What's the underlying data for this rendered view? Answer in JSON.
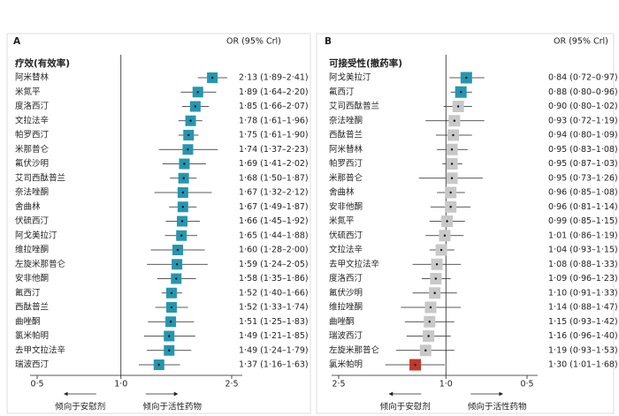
{
  "chart_data": [
    {
      "type": "forest",
      "panel": "A",
      "header": "OR (95% Crl)",
      "title": "疗效(有效率)",
      "left_note": "倾向于安慰剂",
      "right_note": "倾向于活性药物",
      "log": true,
      "xlim": [
        0.5,
        2.5
      ],
      "xticks": [
        {
          "value": 0.5,
          "label": "0·5"
        },
        {
          "value": 1.0,
          "label": "1·0"
        },
        {
          "value": 2.5,
          "label": "2·5"
        }
      ],
      "color": "#2596b0",
      "categories": [
        "阿米替林",
        "米氮平",
        "度洛西汀",
        "文拉法辛",
        "帕罗西汀",
        "米那普仑",
        "氟伏沙明",
        "艾司西酞普兰",
        "奈法唑酮",
        "舍曲林",
        "伏硫西汀",
        "阿戈美拉汀",
        "维拉唑酮",
        "左旋米那普仑",
        "安非他酮",
        "氟西汀",
        "西酞普兰",
        "曲唑酮",
        "氯米帕明",
        "去甲文拉法辛",
        "瑞波西汀"
      ],
      "values": [
        2.13,
        1.89,
        1.85,
        1.78,
        1.75,
        1.74,
        1.69,
        1.68,
        1.67,
        1.67,
        1.66,
        1.65,
        1.6,
        1.59,
        1.58,
        1.52,
        1.52,
        1.51,
        1.49,
        1.49,
        1.37
      ],
      "lower": [
        1.89,
        1.64,
        1.66,
        1.61,
        1.61,
        1.37,
        1.41,
        1.5,
        1.32,
        1.49,
        1.45,
        1.44,
        1.28,
        1.24,
        1.35,
        1.4,
        1.33,
        1.25,
        1.21,
        1.24,
        1.16
      ],
      "upper": [
        2.41,
        2.2,
        2.07,
        1.96,
        1.9,
        2.23,
        2.02,
        1.87,
        2.12,
        1.87,
        1.92,
        1.88,
        2.0,
        2.05,
        1.86,
        1.66,
        1.74,
        1.83,
        1.85,
        1.79,
        1.63
      ],
      "value_labels": [
        "2·13 (1·89–2·41)",
        "1·89 (1·64–2·20)",
        "1·85 (1·66–2·07)",
        "1·78 (1·61–1·96)",
        "1·75 (1·61–1·90)",
        "1·74 (1·37–2·23)",
        "1·69 (1·41–2·02)",
        "1·68 (1·50–1·87)",
        "1·67 (1·32–2·12)",
        "1·67 (1·49–1·87)",
        "1·66 (1·45–1·92)",
        "1·65 (1·44–1·88)",
        "1·60 (1·28–2·00)",
        "1·59 (1·24–2·05)",
        "1·58 (1·35–1·86)",
        "1·52 (1·40–1·66)",
        "1·52 (1·33–1·74)",
        "1·51 (1·25–1·83)",
        "1·49 (1·21–1·85)",
        "1·49 (1·24–1·79)",
        "1·37 (1·16–1·63)"
      ]
    },
    {
      "type": "forest",
      "panel": "B",
      "header": "OR (95% Crl)",
      "title": "可接受性(撤药率)",
      "left_note": "倾向于安慰剂",
      "right_note": "倾向于活性药物",
      "log": true,
      "xlim": [
        2.5,
        0.5
      ],
      "xticks": [
        {
          "value": 2.5,
          "label": "2·5"
        },
        {
          "value": 1.0,
          "label": "1·0"
        },
        {
          "value": 0.5,
          "label": "0·5"
        }
      ],
      "colors": [
        "#2596b0",
        "#2596b0",
        "#c8c8c8",
        "#c8c8c8",
        "#c8c8c8",
        "#c8c8c8",
        "#c8c8c8",
        "#c8c8c8",
        "#c8c8c8",
        "#c8c8c8",
        "#c8c8c8",
        "#c8c8c8",
        "#c8c8c8",
        "#c8c8c8",
        "#c8c8c8",
        "#c8c8c8",
        "#c8c8c8",
        "#c8c8c8",
        "#c8c8c8",
        "#c8c8c8",
        "#c0392b"
      ],
      "categories": [
        "阿戈美拉汀",
        "氟西汀",
        "艾司西酞普兰",
        "奈法唑酮",
        "西酞普兰",
        "阿米替林",
        "帕罗西汀",
        "米那普仑",
        "舍曲林",
        "安非他酮",
        "米氮平",
        "伏硫西汀",
        "文拉法辛",
        "去甲文拉法辛",
        "度洛西汀",
        "氟伏沙明",
        "维拉唑酮",
        "曲唑酮",
        "瑞波西汀",
        "左旋米那普仑",
        "氯米帕明"
      ],
      "values": [
        0.84,
        0.88,
        0.9,
        0.93,
        0.94,
        0.95,
        0.95,
        0.95,
        0.96,
        0.96,
        0.99,
        1.01,
        1.04,
        1.08,
        1.09,
        1.1,
        1.14,
        1.15,
        1.16,
        1.19,
        1.3
      ],
      "lower": [
        0.72,
        0.8,
        0.8,
        0.72,
        0.8,
        0.83,
        0.87,
        0.73,
        0.85,
        0.81,
        0.85,
        0.86,
        0.93,
        0.88,
        0.96,
        0.91,
        0.88,
        0.93,
        0.96,
        0.93,
        1.01
      ],
      "upper": [
        0.97,
        0.96,
        1.02,
        1.19,
        1.09,
        1.08,
        1.03,
        1.26,
        1.08,
        1.14,
        1.15,
        1.19,
        1.15,
        1.33,
        1.23,
        1.33,
        1.47,
        1.42,
        1.4,
        1.53,
        1.68
      ],
      "value_labels": [
        "0·84 (0·72–0·97)",
        "0·88 (0·80–0·96)",
        "0·90 (0·80–1·02)",
        "0·93 (0·72–1·19)",
        "0·94 (0·80–1·09)",
        "0·95 (0·83–1·08)",
        "0·95 (0·87–1·03)",
        "0·95 (0·73–1·26)",
        "0·96 (0·85–1·08)",
        "0·96 (0·81–1·14)",
        "0·99 (0·85–1·15)",
        "1·01 (0·86–1·19)",
        "1·04 (0·93–1·15)",
        "1·08 (0·88–1·33)",
        "1·09 (0·96–1·23)",
        "1·10 (0·91–1·33)",
        "1·14 (0·88–1·47)",
        "1·15 (0·93–1·42)",
        "1·16 (0·96–1·40)",
        "1·19 (0·93–1·53)",
        "1·30 (1·01–1·68)"
      ]
    }
  ]
}
